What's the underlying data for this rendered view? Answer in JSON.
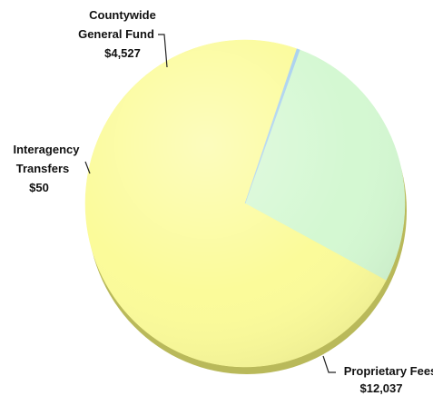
{
  "chart_data": {
    "type": "pie",
    "title": "",
    "slices": [
      {
        "label_lines": [
          "Countywide",
          "General Fund"
        ],
        "value_label": "$4,527",
        "value": 4527,
        "color": "#d4f8d2"
      },
      {
        "label_lines": [
          "Proprietary Fees"
        ],
        "value_label": "$12,037",
        "value": 12037,
        "color": "#fbfb9a"
      },
      {
        "label_lines": [
          "Interagency",
          "Transfers"
        ],
        "value_label": "$50",
        "value": 50,
        "color": "#a8d0f0"
      }
    ],
    "legend": "none",
    "style": "3d-tilted"
  }
}
